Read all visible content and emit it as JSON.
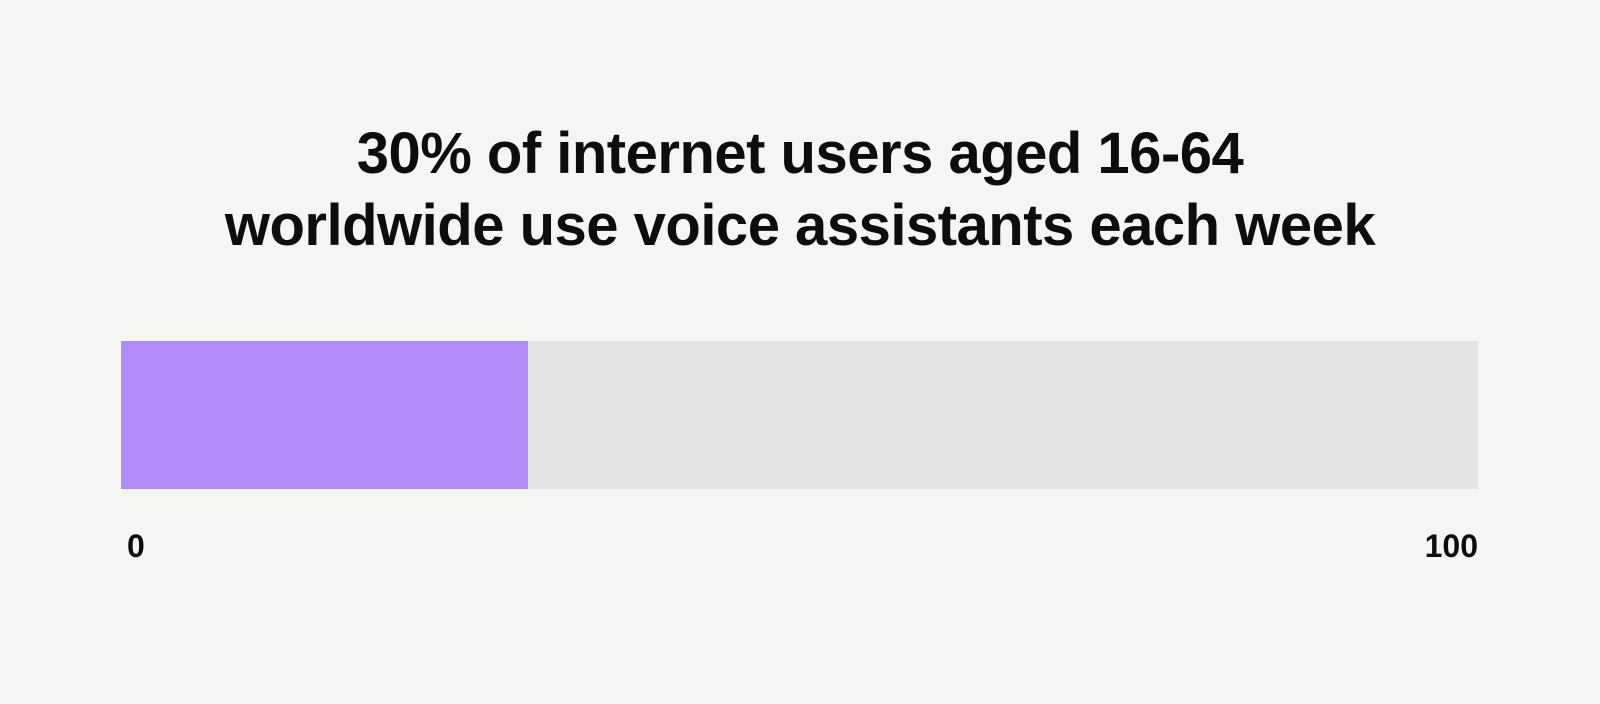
{
  "chart_data": {
    "type": "bar",
    "orientation": "horizontal",
    "title": "30% of internet users aged 16-64 worldwide use voice assistants each week",
    "categories": [
      "Internet users aged 16-64 worldwide who use voice assistants each week"
    ],
    "values": [
      30
    ],
    "unit": "%",
    "xlabel": "",
    "ylabel": "",
    "xlim": [
      0,
      100
    ],
    "tick_labels": [
      "0",
      "100"
    ],
    "grid": false,
    "legend": false
  },
  "title": {
    "line1": "30% of internet users aged 16-64",
    "line2": "worldwide use voice assistants each week"
  },
  "axis": {
    "min_label": "0",
    "max_label": "100"
  },
  "colors": {
    "background": "#f5f5f3",
    "bar_fill": "#b18cf8",
    "bar_track": "#e4e4e4",
    "text": "#0d0d0d"
  }
}
